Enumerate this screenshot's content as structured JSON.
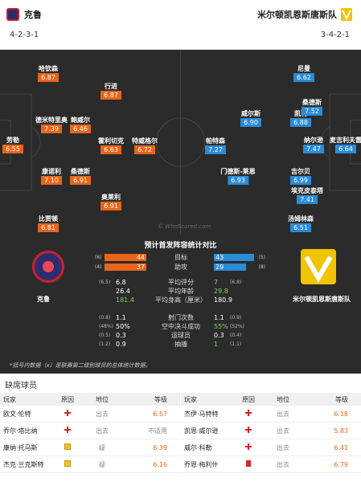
{
  "header": {
    "home_team": "克鲁",
    "away_team": "米尔顿凯恩斯唐斯队",
    "home_formation": "4-2-3-1",
    "away_formation": "3-4-2-1"
  },
  "pitch": {
    "watermark": "© WhoScored.com",
    "home_players": [
      {
        "name": "劳勒",
        "rating": "6.55"
      },
      {
        "name": "康诺利",
        "rating": "7.10"
      },
      {
        "name": "德米特里奥",
        "rating": "7.39"
      },
      {
        "name": "哈钦森",
        "rating": "6.87"
      },
      {
        "name": "比贾顿",
        "rating": "6.81"
      },
      {
        "name": "桑德斯",
        "rating": "6.91"
      },
      {
        "name": "鲍威尔",
        "rating": "6.46"
      },
      {
        "name": "奥莱利",
        "rating": "6.91"
      },
      {
        "name": "霍利切克",
        "rating": "6.63"
      },
      {
        "name": "行进",
        "rating": "6.87"
      },
      {
        "name": "特威格尔",
        "rating": "6.72"
      }
    ],
    "away_players": [
      {
        "name": "麦吉利夫雷",
        "rating": "6.64"
      },
      {
        "name": "纳尔逊",
        "rating": "7.47"
      },
      {
        "name": "吉尔贝",
        "rating": "6.99"
      },
      {
        "name": "凯莉",
        "rating": "6.88"
      },
      {
        "name": "尼曼",
        "rating": "6.62"
      },
      {
        "name": "桑德斯",
        "rating": "7.52"
      },
      {
        "name": "威尔斯",
        "rating": "6.90"
      },
      {
        "name": "门德斯-莱恩",
        "rating": "6.93"
      },
      {
        "name": "埃克皮泰塔",
        "rating": "7.41"
      },
      {
        "name": "汤姆林森",
        "rating": "6.51"
      },
      {
        "name": "帕特森",
        "rating": "7.27"
      }
    ]
  },
  "stats": {
    "title": "预计首发阵容统计对比",
    "home_team": "克鲁",
    "away_team": "米尔顿凯恩斯唐斯队",
    "bars": [
      {
        "label": "目标",
        "home": "44",
        "home_rank": "(6)",
        "away": "43",
        "away_rank": "(5)",
        "home_frac": 0.92,
        "away_frac": 0.9
      },
      {
        "label": "助攻",
        "home": "37",
        "home_rank": "(4)",
        "away": "29",
        "away_rank": "(8)",
        "home_frac": 0.92,
        "away_frac": 0.72
      }
    ],
    "rows1": [
      {
        "label": "平均评分",
        "home": "6.8",
        "home_rank": "(6.5)",
        "away": "7",
        "away_rank": "(6.8)",
        "home_green": false,
        "away_green": true
      },
      {
        "label": "平均年龄",
        "home": "26.4",
        "home_rank": "",
        "away": "29.8",
        "away_rank": "",
        "home_green": false,
        "away_green": true
      },
      {
        "label": "平均身高（厘米）",
        "home": "181.4",
        "home_rank": "",
        "away": "180.9",
        "away_rank": "",
        "home_green": true,
        "away_green": false
      }
    ],
    "rows2": [
      {
        "label": "射门次数",
        "home": "1.1",
        "home_rank": "(0.8)",
        "away": "1.1",
        "away_rank": "(0.9)",
        "home_green": false,
        "away_green": false
      },
      {
        "label": "空中决斗成功",
        "home": "50%",
        "home_rank": "(48%)",
        "away": "55%",
        "away_rank": "(52%)",
        "home_green": false,
        "away_green": true
      },
      {
        "label": "运球员",
        "home": "0.3",
        "home_rank": "(0.5)",
        "away": "0.3",
        "away_rank": "(0.4)",
        "home_green": false,
        "away_green": false
      },
      {
        "label": "抽搐",
        "home": "0.9",
        "home_rank": "(1.2)",
        "away": "1",
        "away_rank": "(1.1)",
        "home_green": false,
        "away_green": true
      }
    ],
    "footnote": "*括号内数据（x）是联赛第二级别球员的总体统计数据。"
  },
  "missing": {
    "title": "缺席球员",
    "headers": [
      "玩家",
      "原因",
      "地位",
      "等级"
    ],
    "home": [
      {
        "name": "欧文·伦特",
        "reason": "injury",
        "status": "出去",
        "rating": "6.57"
      },
      {
        "name": "乔尔·塔比纳",
        "reason": "injury",
        "status": "出去",
        "rating": "不适用"
      },
      {
        "name": "康纳·托马斯",
        "reason": "doubt",
        "status": "疑",
        "rating": "6.39"
      },
      {
        "name": "杰克·兰克斯特",
        "reason": "doubt",
        "status": "疑",
        "rating": "6.16"
      }
    ],
    "away": [
      {
        "name": "杰伊·马特特",
        "reason": "injury",
        "status": "出去",
        "rating": "6.18"
      },
      {
        "name": "凯恩·威尔逊",
        "reason": "injury",
        "status": "出去",
        "rating": "5.83"
      },
      {
        "name": "威尔·科勒",
        "reason": "injury",
        "status": "出去",
        "rating": "6.41"
      },
      {
        "name": "乔恩·梅利什",
        "reason": "red",
        "status": "出去",
        "rating": "6.79"
      }
    ]
  }
}
